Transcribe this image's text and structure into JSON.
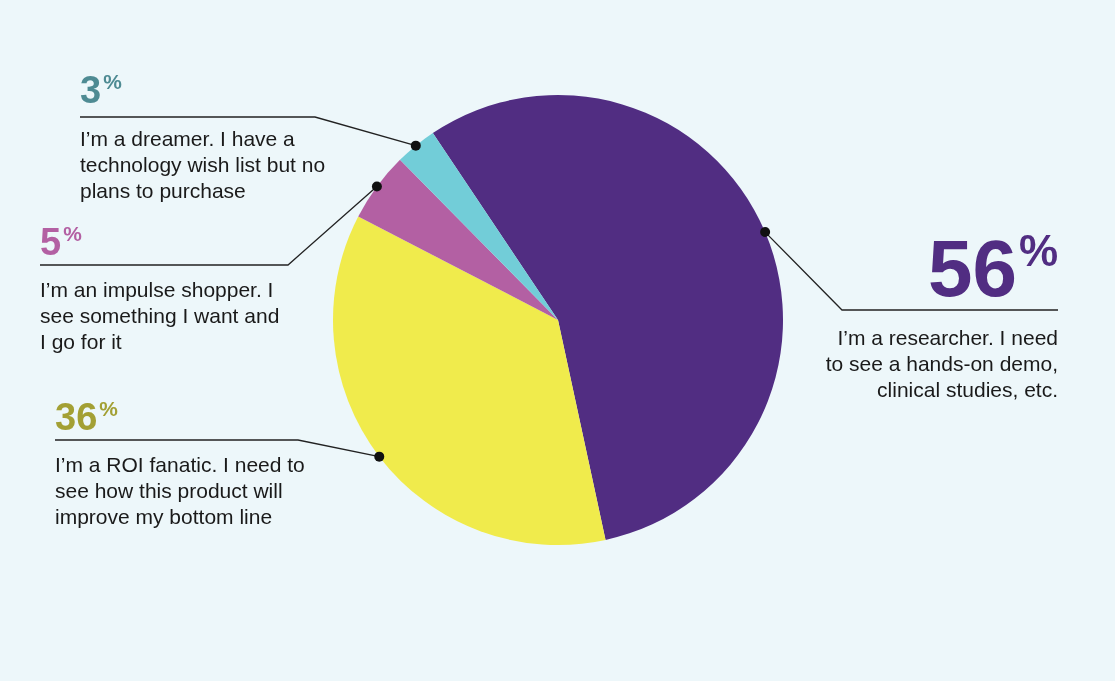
{
  "chart_data": {
    "type": "pie",
    "categories": [
      "I’m a researcher. I need to see a hands-on demo, clinical studies, etc.",
      "I’m a ROI fanatic. I need to see how this product will improve my bottom line",
      "I’m an impulse shopper. I see something I want and I go for it",
      "I’m a dreamer. I have a technology wish list but no plans to purchase"
    ],
    "values": [
      56,
      36,
      5,
      3
    ],
    "colors": [
      "#512d82",
      "#f0eb4c",
      "#b360a3",
      "#72cdd8"
    ],
    "value_labels": [
      "56%",
      "36%",
      "5%",
      "3%"
    ]
  }
}
